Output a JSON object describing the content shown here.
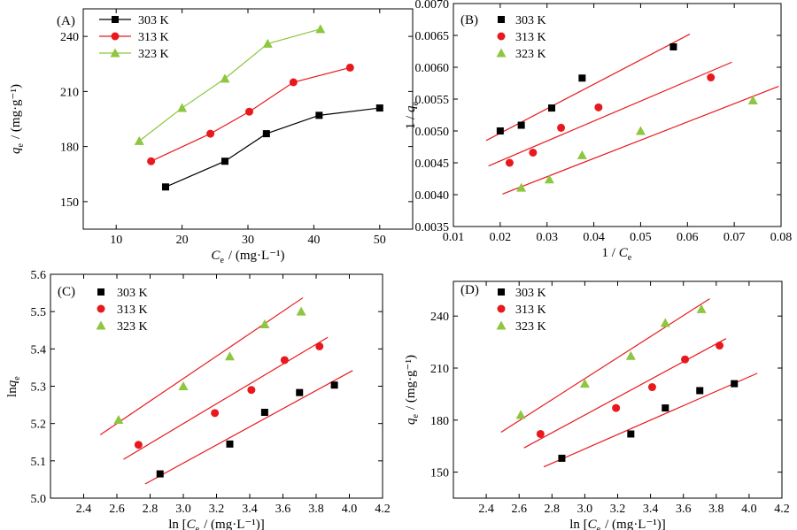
{
  "chart_data": [
    {
      "panel_label": "(A)",
      "type": "line",
      "xlabel": "C_e / (mg·L⁻¹)",
      "ylabel": "q_e / (mg·g⁻¹)",
      "xlim": [
        5,
        55
      ],
      "ylim": [
        135,
        255
      ],
      "xticks": [
        10,
        20,
        30,
        40,
        50
      ],
      "yticks": [
        150,
        180,
        210,
        240
      ],
      "legend_position": "top-left",
      "series": [
        {
          "name": "303 K",
          "color": "#000000",
          "marker": "square",
          "connect": true,
          "points": [
            [
              17.5,
              158
            ],
            [
              26.5,
              172
            ],
            [
              32.8,
              187
            ],
            [
              40.8,
              197
            ],
            [
              50.0,
              201
            ]
          ]
        },
        {
          "name": "313 K",
          "color": "#e8191d",
          "marker": "circle",
          "connect": true,
          "points": [
            [
              15.3,
              172
            ],
            [
              24.3,
              187
            ],
            [
              30.2,
              199
            ],
            [
              36.9,
              215
            ],
            [
              45.5,
              223
            ]
          ]
        },
        {
          "name": "323 K",
          "color": "#8dc63f",
          "marker": "triangle",
          "connect": true,
          "points": [
            [
              13.5,
              183
            ],
            [
              20.0,
              201
            ],
            [
              26.5,
              217
            ],
            [
              33.0,
              236
            ],
            [
              41.0,
              244
            ]
          ]
        }
      ]
    },
    {
      "panel_label": "(B)",
      "type": "scatter",
      "xlabel": "1 / C_e",
      "ylabel": "1 / q_e",
      "xlim": [
        0.01,
        0.08
      ],
      "ylim": [
        0.0035,
        0.007
      ],
      "xticks": [
        0.01,
        0.02,
        0.03,
        0.04,
        0.05,
        0.06,
        0.07,
        0.08
      ],
      "yticks": [
        0.0035,
        0.004,
        0.0045,
        0.005,
        0.0055,
        0.006,
        0.0065,
        0.007
      ],
      "tick_labels_x": [
        "0.01",
        "0.02",
        "0.03",
        "0.04",
        "0.05",
        "0.06",
        "0.07",
        "0.08"
      ],
      "tick_labels_y": [
        "0.0035",
        "0.0040",
        "0.0045",
        "0.0050",
        "0.0055",
        "0.0060",
        "0.0065",
        "0.0070"
      ],
      "legend_position": "top-left",
      "fit_color": "#e8191d",
      "series": [
        {
          "name": "303 K",
          "color": "#000000",
          "marker": "square",
          "points": [
            [
              0.02,
              0.005
            ],
            [
              0.0245,
              0.00509
            ],
            [
              0.031,
              0.00536
            ],
            [
              0.0375,
              0.00583
            ],
            [
              0.057,
              0.00632
            ]
          ],
          "fit": [
            [
              0.017,
              0.00485
            ],
            [
              0.0605,
              0.00652
            ]
          ]
        },
        {
          "name": "313 K",
          "color": "#e8191d",
          "marker": "circle",
          "points": [
            [
              0.022,
              0.0045
            ],
            [
              0.027,
              0.00466
            ],
            [
              0.033,
              0.00505
            ],
            [
              0.041,
              0.00537
            ],
            [
              0.065,
              0.00584
            ]
          ],
          "fit": [
            [
              0.0175,
              0.00445
            ],
            [
              0.0695,
              0.00608
            ]
          ]
        },
        {
          "name": "323 K",
          "color": "#8dc63f",
          "marker": "triangle",
          "points": [
            [
              0.0245,
              0.00411
            ],
            [
              0.0305,
              0.00424
            ],
            [
              0.0375,
              0.00462
            ],
            [
              0.05,
              0.005
            ],
            [
              0.074,
              0.00548
            ]
          ],
          "fit": [
            [
              0.0205,
              0.00401
            ],
            [
              0.0795,
              0.0057
            ]
          ]
        }
      ]
    },
    {
      "panel_label": "(C)",
      "type": "scatter",
      "xlabel": "ln [C_e / (mg·L⁻¹)]",
      "ylabel": "lnq_e",
      "xlim": [
        2.2,
        4.2
      ],
      "ylim": [
        5.0,
        5.6
      ],
      "xticks": [
        2.4,
        2.6,
        2.8,
        3.0,
        3.2,
        3.4,
        3.6,
        3.8,
        4.0,
        4.2
      ],
      "yticks": [
        5.0,
        5.1,
        5.2,
        5.3,
        5.4,
        5.5,
        5.6
      ],
      "tick_labels_x": [
        "2.4",
        "2.6",
        "2.8",
        "3.0",
        "3.2",
        "3.4",
        "3.6",
        "3.8",
        "4.0",
        "4.2"
      ],
      "tick_labels_y": [
        "5.0",
        "5.1",
        "5.2",
        "5.3",
        "5.4",
        "5.5",
        "5.6"
      ],
      "legend_position": "top-left",
      "fit_color": "#e8191d",
      "series": [
        {
          "name": "303 K",
          "color": "#000000",
          "marker": "square",
          "points": [
            [
              2.86,
              5.065
            ],
            [
              3.28,
              5.145
            ],
            [
              3.49,
              5.23
            ],
            [
              3.7,
              5.283
            ],
            [
              3.91,
              5.303
            ]
          ],
          "fit": [
            [
              2.77,
              5.038
            ],
            [
              4.02,
              5.342
            ]
          ]
        },
        {
          "name": "313 K",
          "color": "#e8191d",
          "marker": "circle",
          "points": [
            [
              2.73,
              5.143
            ],
            [
              3.19,
              5.228
            ],
            [
              3.41,
              5.29
            ],
            [
              3.61,
              5.37
            ],
            [
              3.82,
              5.407
            ]
          ],
          "fit": [
            [
              2.64,
              5.104
            ],
            [
              3.87,
              5.431
            ]
          ]
        },
        {
          "name": "323 K",
          "color": "#8dc63f",
          "marker": "triangle",
          "points": [
            [
              2.61,
              5.21
            ],
            [
              3.0,
              5.3
            ],
            [
              3.28,
              5.38
            ],
            [
              3.49,
              5.466
            ],
            [
              3.71,
              5.5
            ]
          ],
          "fit": [
            [
              2.5,
              5.17
            ],
            [
              3.72,
              5.537
            ]
          ]
        }
      ]
    },
    {
      "panel_label": "(D)",
      "type": "scatter",
      "xlabel": "ln [C_e / (mg·L⁻¹)]",
      "ylabel": "q_e / (mg·g⁻¹)",
      "xlim": [
        2.2,
        4.2
      ],
      "ylim": [
        135,
        260
      ],
      "xticks": [
        2.4,
        2.6,
        2.8,
        3.0,
        3.2,
        3.4,
        3.6,
        3.8,
        4.0,
        4.2
      ],
      "yticks": [
        150,
        180,
        210,
        240
      ],
      "tick_labels_x": [
        "2.4",
        "2.6",
        "2.8",
        "3.0",
        "3.2",
        "3.4",
        "3.6",
        "3.8",
        "4.0",
        "4.2"
      ],
      "tick_labels_y": [
        "150",
        "180",
        "210",
        "240"
      ],
      "legend_position": "top-left",
      "fit_color": "#e8191d",
      "series": [
        {
          "name": "303 K",
          "color": "#000000",
          "marker": "square",
          "points": [
            [
              2.86,
              158
            ],
            [
              3.28,
              172
            ],
            [
              3.49,
              187
            ],
            [
              3.7,
              197
            ],
            [
              3.91,
              201
            ]
          ],
          "fit": [
            [
              2.75,
              153
            ],
            [
              4.05,
              207
            ]
          ]
        },
        {
          "name": "313 K",
          "color": "#e8191d",
          "marker": "circle",
          "points": [
            [
              2.73,
              172
            ],
            [
              3.19,
              187
            ],
            [
              3.41,
              199
            ],
            [
              3.61,
              215
            ],
            [
              3.82,
              223
            ]
          ],
          "fit": [
            [
              2.63,
              164
            ],
            [
              3.86,
              227
            ]
          ]
        },
        {
          "name": "323 K",
          "color": "#8dc63f",
          "marker": "triangle",
          "points": [
            [
              2.61,
              183
            ],
            [
              3.0,
              201
            ],
            [
              3.28,
              217
            ],
            [
              3.49,
              236
            ],
            [
              3.71,
              244
            ]
          ],
          "fit": [
            [
              2.49,
              173
            ],
            [
              3.76,
              250
            ]
          ]
        }
      ]
    }
  ]
}
